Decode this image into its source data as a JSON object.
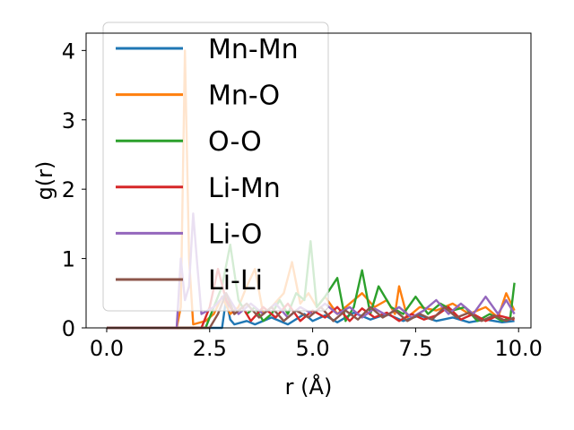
{
  "chart_data": {
    "type": "line",
    "xlabel": "r (Å)",
    "ylabel": "g(r)",
    "xlim": [
      -0.5,
      10.3
    ],
    "ylim": [
      0,
      4.25
    ],
    "xticks": [
      "0.0",
      "2.5",
      "5.0",
      "7.5",
      "10.0"
    ],
    "yticks": [
      "0",
      "1",
      "2",
      "3",
      "4"
    ],
    "grid": false,
    "legend_position": "upper-left",
    "series": [
      {
        "name": "Mn-Mn",
        "color": "#1f77b4",
        "points": [
          [
            0,
            0
          ],
          [
            1.7,
            0
          ],
          [
            2.8,
            0
          ],
          [
            2.9,
            0.42
          ],
          [
            3.0,
            0.12
          ],
          [
            3.1,
            0.05
          ],
          [
            3.4,
            0.1
          ],
          [
            3.6,
            0.05
          ],
          [
            4.0,
            0.15
          ],
          [
            4.4,
            0.05
          ],
          [
            4.8,
            0.2
          ],
          [
            5.0,
            0.1
          ],
          [
            5.3,
            0.18
          ],
          [
            5.6,
            0.08
          ],
          [
            6.0,
            0.22
          ],
          [
            6.4,
            0.12
          ],
          [
            6.8,
            0.2
          ],
          [
            7.2,
            0.1
          ],
          [
            7.6,
            0.18
          ],
          [
            8.0,
            0.1
          ],
          [
            8.4,
            0.15
          ],
          [
            8.8,
            0.08
          ],
          [
            9.2,
            0.12
          ],
          [
            9.6,
            0.08
          ],
          [
            9.9,
            0.1
          ]
        ]
      },
      {
        "name": "Mn-O",
        "color": "#ff7f0e",
        "points": [
          [
            0,
            0
          ],
          [
            1.7,
            0
          ],
          [
            1.8,
            0.3
          ],
          [
            1.9,
            4.0
          ],
          [
            2.0,
            1.0
          ],
          [
            2.1,
            0.05
          ],
          [
            2.4,
            0.1
          ],
          [
            2.6,
            0.2
          ],
          [
            2.8,
            0.45
          ],
          [
            3.0,
            0.2
          ],
          [
            3.2,
            0.3
          ],
          [
            3.4,
            0.6
          ],
          [
            3.6,
            0.85
          ],
          [
            3.8,
            0.2
          ],
          [
            4.0,
            0.3
          ],
          [
            4.3,
            0.5
          ],
          [
            4.5,
            0.95
          ],
          [
            4.7,
            0.35
          ],
          [
            4.9,
            0.5
          ],
          [
            5.1,
            0.3
          ],
          [
            5.3,
            0.45
          ],
          [
            5.6,
            0.2
          ],
          [
            5.9,
            0.35
          ],
          [
            6.2,
            0.5
          ],
          [
            6.5,
            0.3
          ],
          [
            6.8,
            0.4
          ],
          [
            7.0,
            0.2
          ],
          [
            7.1,
            0.6
          ],
          [
            7.3,
            0.15
          ],
          [
            7.6,
            0.3
          ],
          [
            8.0,
            0.25
          ],
          [
            8.4,
            0.35
          ],
          [
            8.8,
            0.2
          ],
          [
            9.2,
            0.3
          ],
          [
            9.5,
            0.15
          ],
          [
            9.7,
            0.5
          ],
          [
            9.9,
            0.25
          ]
        ]
      },
      {
        "name": "O-O",
        "color": "#2ca02c",
        "points": [
          [
            0,
            0
          ],
          [
            2.4,
            0
          ],
          [
            2.6,
            0.3
          ],
          [
            2.8,
            0.6
          ],
          [
            3.0,
            1.2
          ],
          [
            3.2,
            0.4
          ],
          [
            3.4,
            0.2
          ],
          [
            3.6,
            0.3
          ],
          [
            3.8,
            0.1
          ],
          [
            4.0,
            0.2
          ],
          [
            4.2,
            0.4
          ],
          [
            4.4,
            0.2
          ],
          [
            4.6,
            0.5
          ],
          [
            4.8,
            0.4
          ],
          [
            4.95,
            1.25
          ],
          [
            5.1,
            0.3
          ],
          [
            5.3,
            0.45
          ],
          [
            5.6,
            0.72
          ],
          [
            5.8,
            0.1
          ],
          [
            6.0,
            0.3
          ],
          [
            6.2,
            0.83
          ],
          [
            6.4,
            0.2
          ],
          [
            6.6,
            0.6
          ],
          [
            6.9,
            0.3
          ],
          [
            7.2,
            0.2
          ],
          [
            7.5,
            0.45
          ],
          [
            7.8,
            0.2
          ],
          [
            8.1,
            0.35
          ],
          [
            8.4,
            0.25
          ],
          [
            8.7,
            0.3
          ],
          [
            9.0,
            0.1
          ],
          [
            9.3,
            0.2
          ],
          [
            9.6,
            0.1
          ],
          [
            9.8,
            0.15
          ],
          [
            9.9,
            0.65
          ]
        ]
      },
      {
        "name": "Li-Mn",
        "color": "#d62728",
        "points": [
          [
            0,
            0
          ],
          [
            2.3,
            0
          ],
          [
            2.5,
            0.3
          ],
          [
            2.7,
            0.85
          ],
          [
            2.9,
            0.4
          ],
          [
            3.1,
            0.2
          ],
          [
            3.3,
            0.3
          ],
          [
            3.5,
            0.1
          ],
          [
            3.8,
            0.3
          ],
          [
            4.1,
            0.15
          ],
          [
            4.4,
            0.35
          ],
          [
            4.7,
            0.1
          ],
          [
            5.0,
            0.25
          ],
          [
            5.3,
            0.15
          ],
          [
            5.6,
            0.3
          ],
          [
            5.9,
            0.1
          ],
          [
            6.2,
            0.28
          ],
          [
            6.5,
            0.15
          ],
          [
            6.8,
            0.22
          ],
          [
            7.1,
            0.1
          ],
          [
            7.4,
            0.2
          ],
          [
            7.7,
            0.12
          ],
          [
            8.0,
            0.18
          ],
          [
            8.3,
            0.3
          ],
          [
            8.6,
            0.12
          ],
          [
            8.9,
            0.2
          ],
          [
            9.2,
            0.1
          ],
          [
            9.5,
            0.18
          ],
          [
            9.9,
            0.12
          ]
        ]
      },
      {
        "name": "Li-O",
        "color": "#9467bd",
        "points": [
          [
            0,
            0
          ],
          [
            1.7,
            0
          ],
          [
            1.8,
            1.0
          ],
          [
            1.9,
            0.4
          ],
          [
            2.0,
            0.6
          ],
          [
            2.1,
            1.65
          ],
          [
            2.2,
            0.9
          ],
          [
            2.3,
            0.2
          ],
          [
            2.6,
            0.3
          ],
          [
            2.9,
            0.5
          ],
          [
            3.2,
            0.2
          ],
          [
            3.5,
            0.35
          ],
          [
            3.8,
            0.2
          ],
          [
            4.1,
            0.35
          ],
          [
            4.4,
            0.15
          ],
          [
            4.7,
            0.3
          ],
          [
            5.0,
            0.2
          ],
          [
            5.3,
            0.35
          ],
          [
            5.6,
            0.2
          ],
          [
            5.9,
            0.3
          ],
          [
            6.2,
            0.15
          ],
          [
            6.5,
            0.28
          ],
          [
            6.8,
            0.18
          ],
          [
            7.1,
            0.3
          ],
          [
            7.4,
            0.15
          ],
          [
            7.7,
            0.25
          ],
          [
            8.0,
            0.4
          ],
          [
            8.3,
            0.2
          ],
          [
            8.6,
            0.35
          ],
          [
            8.9,
            0.2
          ],
          [
            9.2,
            0.45
          ],
          [
            9.5,
            0.2
          ],
          [
            9.7,
            0.4
          ],
          [
            9.9,
            0.2
          ]
        ]
      },
      {
        "name": "Li-Li",
        "color": "#8c564b",
        "points": [
          [
            0,
            0
          ],
          [
            2.5,
            0
          ],
          [
            2.7,
            0.2
          ],
          [
            2.9,
            0.5
          ],
          [
            3.1,
            0.2
          ],
          [
            3.4,
            0.35
          ],
          [
            3.7,
            0.15
          ],
          [
            4.0,
            0.3
          ],
          [
            4.3,
            0.1
          ],
          [
            4.6,
            0.25
          ],
          [
            4.9,
            0.15
          ],
          [
            5.2,
            0.3
          ],
          [
            5.5,
            0.1
          ],
          [
            5.8,
            0.25
          ],
          [
            6.1,
            0.12
          ],
          [
            6.4,
            0.3
          ],
          [
            6.7,
            0.15
          ],
          [
            7.0,
            0.25
          ],
          [
            7.3,
            0.1
          ],
          [
            7.6,
            0.2
          ],
          [
            7.9,
            0.12
          ],
          [
            8.2,
            0.3
          ],
          [
            8.5,
            0.15
          ],
          [
            8.8,
            0.22
          ],
          [
            9.1,
            0.1
          ],
          [
            9.4,
            0.18
          ],
          [
            9.7,
            0.1
          ],
          [
            9.9,
            0.15
          ]
        ]
      }
    ]
  }
}
